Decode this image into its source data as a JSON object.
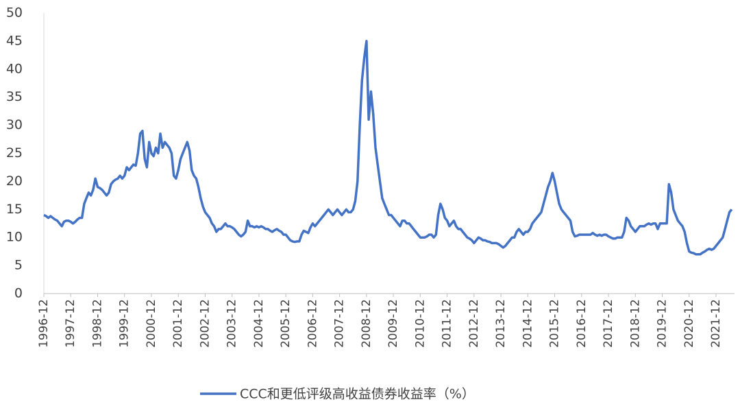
{
  "chart_data": {
    "type": "line",
    "categories": [
      "1996-12",
      null,
      null,
      null,
      null,
      null,
      null,
      null,
      null,
      null,
      null,
      null,
      "1997-12",
      null,
      null,
      null,
      null,
      null,
      null,
      null,
      null,
      null,
      null,
      null,
      "1998-12",
      null,
      null,
      null,
      null,
      null,
      null,
      null,
      null,
      null,
      null,
      null,
      "1999-12",
      null,
      null,
      null,
      null,
      null,
      null,
      null,
      null,
      null,
      null,
      null,
      "2000-12",
      null,
      null,
      null,
      null,
      null,
      null,
      null,
      null,
      null,
      null,
      null,
      "2001-12",
      null,
      null,
      null,
      null,
      null,
      null,
      null,
      null,
      null,
      null,
      null,
      "2002-12",
      null,
      null,
      null,
      null,
      null,
      null,
      null,
      null,
      null,
      null,
      null,
      "2003-12",
      null,
      null,
      null,
      null,
      null,
      null,
      null,
      null,
      null,
      null,
      null,
      "2004-12",
      null,
      null,
      null,
      null,
      null,
      null,
      null,
      null,
      null,
      null,
      null,
      "2005-12",
      null,
      null,
      null,
      null,
      null,
      null,
      null,
      null,
      null,
      null,
      null,
      "2006-12",
      null,
      null,
      null,
      null,
      null,
      null,
      null,
      null,
      null,
      null,
      null,
      "2007-12",
      null,
      null,
      null,
      null,
      null,
      null,
      null,
      null,
      null,
      null,
      null,
      "2008-12",
      null,
      null,
      null,
      null,
      null,
      null,
      null,
      null,
      null,
      null,
      null,
      "2009-12",
      null,
      null,
      null,
      null,
      null,
      null,
      null,
      null,
      null,
      null,
      null,
      "2010-12",
      null,
      null,
      null,
      null,
      null,
      null,
      null,
      null,
      null,
      null,
      null,
      "2011-12",
      null,
      null,
      null,
      null,
      null,
      null,
      null,
      null,
      null,
      null,
      null,
      "2012-12",
      null,
      null,
      null,
      null,
      null,
      null,
      null,
      null,
      null,
      null,
      null,
      "2013-12",
      null,
      null,
      null,
      null,
      null,
      null,
      null,
      null,
      null,
      null,
      null,
      "2014-12",
      null,
      null,
      null,
      null,
      null,
      null,
      null,
      null,
      null,
      null,
      null,
      "2015-12",
      null,
      null,
      null,
      null,
      null,
      null,
      null,
      null,
      null,
      null,
      null,
      "2016-12",
      null,
      null,
      null,
      null,
      null,
      null,
      null,
      null,
      null,
      null,
      null,
      "2017-12",
      null,
      null,
      null,
      null,
      null,
      null,
      null,
      null,
      null,
      null,
      null,
      "2018-12",
      null,
      null,
      null,
      null,
      null,
      null,
      null,
      null,
      null,
      null,
      null,
      "2019-12",
      null,
      null,
      null,
      null,
      null,
      null,
      null,
      null,
      null,
      null,
      null,
      "2020-12",
      null,
      null,
      null,
      null,
      null,
      null,
      null,
      null,
      null,
      null,
      null,
      "2021-12",
      null,
      null,
      null,
      null,
      null,
      null,
      null
    ],
    "series": [
      {
        "name": "CCC和更低评级高收益债券收益率（%）",
        "color": "#4472c4",
        "values": [
          14,
          13.8,
          13.5,
          13.8,
          13.5,
          13.2,
          13,
          12.5,
          12,
          12.8,
          13,
          13,
          12.8,
          12.5,
          12.8,
          13.2,
          13.5,
          13.5,
          16,
          17,
          18,
          17.5,
          18.5,
          20.5,
          19,
          18.8,
          18.5,
          18,
          17.5,
          18,
          19.5,
          20,
          20.3,
          20.5,
          21,
          20.5,
          21,
          22.5,
          22,
          22.5,
          23,
          22.8,
          25,
          28.5,
          29,
          24,
          22.5,
          27,
          25,
          24.5,
          26,
          25,
          28.5,
          26,
          27,
          26.5,
          26,
          25,
          21,
          20.5,
          22,
          24,
          25,
          26,
          27,
          25.5,
          22,
          21,
          20.5,
          19,
          17,
          15.5,
          14.5,
          14,
          13.5,
          12.5,
          12,
          11,
          11.5,
          11.5,
          12,
          12.5,
          12,
          12,
          11.8,
          11.5,
          11,
          10.5,
          10.2,
          10.5,
          11,
          13,
          12,
          12,
          11.8,
          12,
          11.8,
          12,
          11.8,
          11.5,
          11.5,
          11.2,
          11,
          11.3,
          11.5,
          11.2,
          11,
          10.5,
          10.5,
          10,
          9.5,
          9.3,
          9.2,
          9.3,
          9.3,
          10.5,
          11.2,
          11,
          10.8,
          11.8,
          12.5,
          12,
          12.5,
          13,
          13.5,
          14,
          14.5,
          15,
          14.5,
          14,
          14.5,
          15,
          14.5,
          14,
          14.5,
          15,
          14.5,
          14.5,
          15,
          16.5,
          20,
          30,
          38,
          42,
          45,
          31,
          36,
          32,
          26,
          23,
          20,
          17,
          16,
          15,
          14,
          14,
          13.5,
          13,
          12.5,
          12,
          13,
          13,
          12.5,
          12.5,
          12,
          11.5,
          11,
          10.5,
          10,
          10,
          10,
          10.2,
          10.5,
          10.5,
          10,
          10.5,
          14,
          16,
          15,
          13.5,
          13,
          12,
          12.5,
          13,
          12,
          11.5,
          11.5,
          11,
          10.5,
          10,
          9.8,
          9.5,
          9,
          9.5,
          10,
          9.8,
          9.5,
          9.5,
          9.3,
          9.2,
          9,
          9,
          9,
          8.8,
          8.5,
          8.2,
          8.5,
          9,
          9.5,
          10,
          10,
          11,
          11.5,
          11,
          10.5,
          11,
          11,
          11.5,
          12.5,
          13,
          13.5,
          14,
          14.5,
          16,
          17.5,
          19,
          20,
          21.5,
          20,
          18,
          16,
          15,
          14.5,
          14,
          13.5,
          13,
          11,
          10.2,
          10.3,
          10.5,
          10.5,
          10.5,
          10.5,
          10.5,
          10.5,
          10.8,
          10.5,
          10.3,
          10.5,
          10.3,
          10.5,
          10.5,
          10.2,
          10,
          9.8,
          9.8,
          10,
          10,
          10,
          11,
          13.5,
          13,
          12,
          11.5,
          11,
          11.5,
          12,
          12,
          12,
          12.3,
          12.5,
          12.3,
          12.5,
          12.5,
          11.5,
          12.5,
          12.5,
          12.5,
          12.5,
          19.5,
          18,
          15,
          14,
          13,
          12.5,
          12,
          11,
          9,
          7.5,
          7.3,
          7.2,
          7,
          7,
          7,
          7.3,
          7.5,
          7.8,
          8,
          7.8,
          8,
          8.5,
          9,
          9.5,
          10,
          11.5,
          13,
          14.5,
          15
        ]
      }
    ],
    "ylim": [
      0,
      50
    ],
    "yticks": [
      0,
      5,
      10,
      15,
      20,
      25,
      30,
      35,
      40,
      45,
      50
    ],
    "legend": "bottom"
  }
}
